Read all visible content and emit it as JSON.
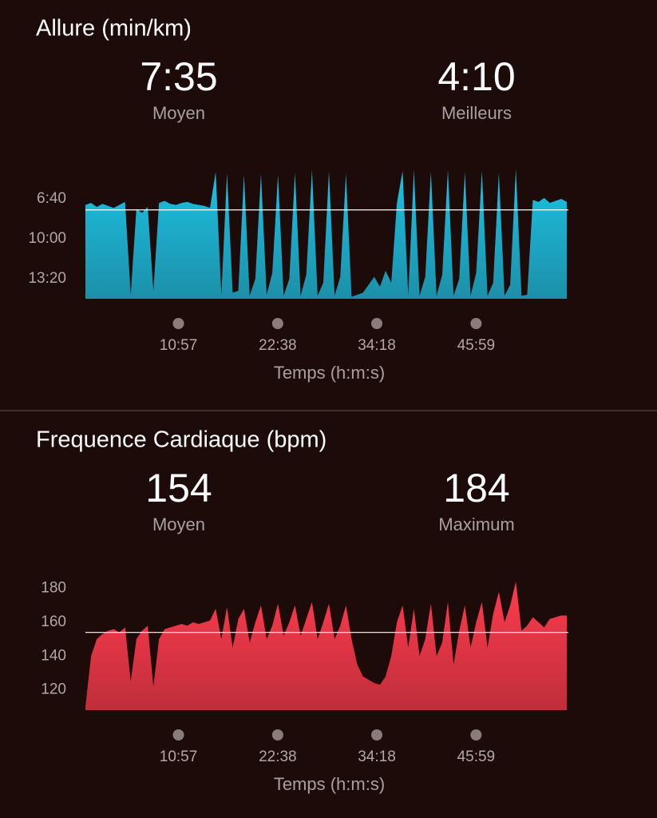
{
  "chart_data": [
    {
      "type": "area",
      "title": "Allure (min/km)",
      "x_label": "Temps (h:m:s)",
      "inverted": true,
      "color": "#1cc3e6",
      "stats": [
        {
          "value": 455,
          "label": "7:35",
          "name": "Moyen"
        },
        {
          "value": 250,
          "label": "4:10",
          "name": "Meilleurs"
        }
      ],
      "xlim": [
        0,
        3411
      ],
      "xticks": [
        {
          "value": 657,
          "label": "10:57"
        },
        {
          "value": 1358,
          "label": "22:38"
        },
        {
          "value": 2058,
          "label": "34:18"
        },
        {
          "value": 2759,
          "label": "45:59"
        }
      ],
      "ylim": [
        900,
        240
      ],
      "yticks": [
        {
          "value": 400,
          "label": "6:40"
        },
        {
          "value": 600,
          "label": "10:00"
        },
        {
          "value": 800,
          "label": "13:20"
        }
      ],
      "x": [
        0,
        40,
        80,
        120,
        160,
        200,
        240,
        280,
        320,
        360,
        400,
        440,
        480,
        520,
        560,
        600,
        640,
        680,
        720,
        760,
        800,
        840,
        880,
        920,
        960,
        1000,
        1040,
        1080,
        1120,
        1160,
        1200,
        1240,
        1280,
        1320,
        1360,
        1400,
        1440,
        1480,
        1520,
        1560,
        1600,
        1640,
        1680,
        1720,
        1760,
        1800,
        1840,
        1880,
        1920,
        1960,
        2000,
        2040,
        2080,
        2120,
        2160,
        2200,
        2240,
        2280,
        2320,
        2360,
        2400,
        2440,
        2480,
        2520,
        2560,
        2600,
        2640,
        2680,
        2720,
        2760,
        2800,
        2840,
        2880,
        2920,
        2960,
        3000,
        3040,
        3080,
        3120,
        3160,
        3200,
        3240,
        3280,
        3320,
        3360,
        3400
      ],
      "values": [
        430,
        420,
        440,
        425,
        435,
        445,
        430,
        415,
        880,
        450,
        470,
        440,
        860,
        420,
        410,
        425,
        430,
        420,
        415,
        425,
        430,
        435,
        445,
        265,
        880,
        270,
        870,
        860,
        280,
        885,
        800,
        275,
        880,
        770,
        280,
        885,
        800,
        270,
        885,
        780,
        255,
        885,
        820,
        262,
        885,
        790,
        275,
        890,
        880,
        870,
        830,
        790,
        840,
        760,
        820,
        420,
        260,
        885,
        255,
        885,
        790,
        265,
        885,
        780,
        255,
        885,
        800,
        265,
        885,
        770,
        260,
        885,
        820,
        270,
        885,
        830,
        250,
        885,
        880,
        405,
        415,
        395,
        420,
        410,
        400,
        415
      ]
    },
    {
      "type": "area",
      "title": "Frequence Cardiaque (bpm)",
      "x_label": "Temps (h:m:s)",
      "color": "#ff3b4e",
      "stats": [
        {
          "value": 154,
          "name": "Moyen"
        },
        {
          "value": 184,
          "name": "Maximum"
        }
      ],
      "xlim": [
        0,
        3411
      ],
      "xticks": [
        {
          "value": 657,
          "label": "10:57"
        },
        {
          "value": 1358,
          "label": "22:38"
        },
        {
          "value": 2058,
          "label": "34:18"
        },
        {
          "value": 2759,
          "label": "45:59"
        }
      ],
      "ylim": [
        108,
        186
      ],
      "yticks": [
        120,
        140,
        160,
        180
      ],
      "x": [
        0,
        40,
        80,
        120,
        160,
        200,
        240,
        280,
        320,
        360,
        400,
        440,
        480,
        520,
        560,
        600,
        640,
        680,
        720,
        760,
        800,
        840,
        880,
        920,
        960,
        1000,
        1040,
        1080,
        1120,
        1160,
        1200,
        1240,
        1280,
        1320,
        1360,
        1400,
        1440,
        1480,
        1520,
        1560,
        1600,
        1640,
        1680,
        1720,
        1760,
        1800,
        1840,
        1880,
        1920,
        1960,
        2000,
        2040,
        2080,
        2120,
        2160,
        2200,
        2240,
        2280,
        2320,
        2360,
        2400,
        2440,
        2480,
        2520,
        2560,
        2600,
        2640,
        2680,
        2720,
        2760,
        2800,
        2840,
        2880,
        2920,
        2960,
        3000,
        3040,
        3080,
        3120,
        3160,
        3200,
        3240,
        3280,
        3320,
        3360,
        3400
      ],
      "values": [
        110,
        140,
        150,
        153,
        155,
        156,
        154,
        157,
        125,
        150,
        155,
        158,
        122,
        150,
        156,
        157,
        158,
        159,
        158,
        160,
        159,
        160,
        161,
        168,
        150,
        169,
        145,
        162,
        168,
        148,
        160,
        170,
        150,
        158,
        171,
        152,
        160,
        170,
        152,
        162,
        172,
        150,
        160,
        171,
        150,
        158,
        170,
        150,
        135,
        128,
        126,
        124,
        123,
        128,
        140,
        160,
        170,
        145,
        168,
        140,
        150,
        171,
        140,
        148,
        172,
        135,
        155,
        170,
        145,
        160,
        172,
        145,
        165,
        178,
        160,
        170,
        184,
        155,
        158,
        163,
        160,
        157,
        162,
        163,
        164,
        164
      ]
    }
  ]
}
